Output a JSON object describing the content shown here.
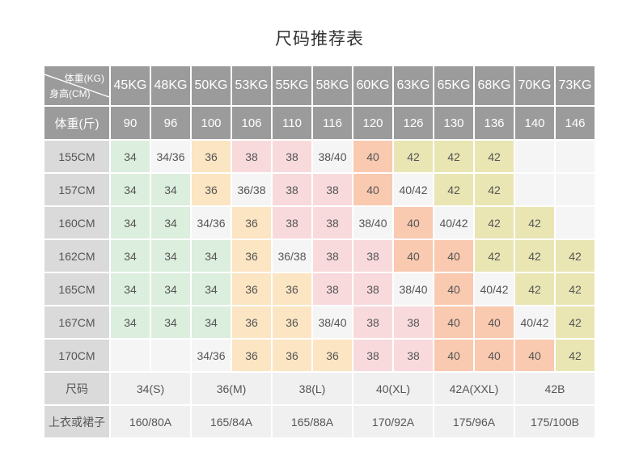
{
  "page": {
    "title": "尺码推荐表"
  },
  "chart_data": {
    "type": "table",
    "title": "尺码推荐表",
    "corner": {
      "top_right": "体重(KG)",
      "bottom_left": "身高(CM)"
    },
    "columns_kg": [
      "45KG",
      "48KG",
      "50KG",
      "53KG",
      "55KG",
      "58KG",
      "60KG",
      "63KG",
      "65KG",
      "68KG",
      "70KG",
      "73KG"
    ],
    "weight_jin": {
      "label": "体重(斤)",
      "values": [
        "90",
        "96",
        "100",
        "106",
        "110",
        "116",
        "120",
        "126",
        "130",
        "136",
        "140",
        "146"
      ]
    },
    "rows": [
      {
        "label": "155CM",
        "cells": [
          "34",
          "34/36",
          "36",
          "38",
          "38",
          "38/40",
          "40",
          "42",
          "42",
          "42",
          "",
          ""
        ]
      },
      {
        "label": "157CM",
        "cells": [
          "34",
          "34",
          "36",
          "36/38",
          "38",
          "38",
          "40",
          "40/42",
          "42",
          "42",
          "",
          ""
        ]
      },
      {
        "label": "160CM",
        "cells": [
          "34",
          "34",
          "34/36",
          "36",
          "38",
          "38",
          "38/40",
          "40",
          "40/42",
          "42",
          "42",
          ""
        ]
      },
      {
        "label": "162CM",
        "cells": [
          "34",
          "34",
          "34",
          "36",
          "36/38",
          "38",
          "38",
          "40",
          "40",
          "42",
          "42",
          "42"
        ]
      },
      {
        "label": "165CM",
        "cells": [
          "34",
          "34",
          "34",
          "36",
          "36",
          "38",
          "38",
          "38/40",
          "40",
          "40/42",
          "42",
          "42"
        ]
      },
      {
        "label": "167CM",
        "cells": [
          "34",
          "34",
          "34",
          "36",
          "36",
          "38/40",
          "38",
          "38",
          "40",
          "40",
          "40/42",
          "42"
        ]
      },
      {
        "label": "170CM",
        "cells": [
          "",
          "",
          "34/36",
          "36",
          "36",
          "36",
          "38",
          "38",
          "40",
          "40",
          "40",
          "42"
        ]
      }
    ],
    "size_row": {
      "label": "尺码",
      "col_span": 2,
      "values": [
        "34(S)",
        "36(M)",
        "38(L)",
        "40(XL)",
        "42A(XXL)",
        "42B"
      ]
    },
    "garment_row": {
      "label": "上衣或裙子",
      "col_span": 2,
      "values": [
        "160/80A",
        "165/84A",
        "165/88A",
        "170/92A",
        "175/96A",
        "175/100B"
      ]
    },
    "colors": {
      "header_bg": "#9b9b9b",
      "header_text": "#ffffff",
      "row_label_bg": "#dadada",
      "body_text": "#555555",
      "size_34": "#dceedd",
      "size_36": "#fbe5c2",
      "size_38": "#f8dadd",
      "size_40": "#f9c9b0",
      "size_42": "#e9e6b4",
      "split_or_empty": "#f5f5f5",
      "bottom_value_bg": "#f0f0f0"
    }
  }
}
